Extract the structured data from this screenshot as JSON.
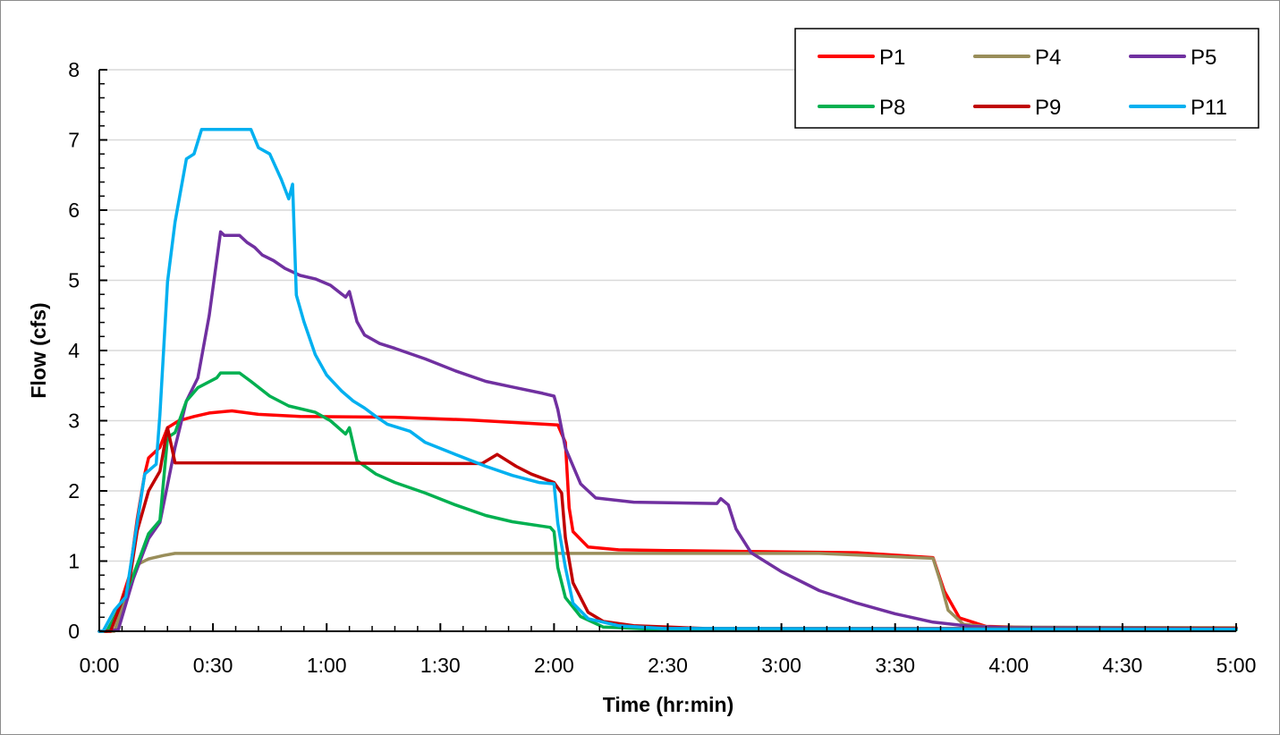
{
  "chart_data": {
    "type": "line",
    "xlabel": "Time (hr:min)",
    "ylabel": "Flow (cfs)",
    "xlim": [
      "0:00",
      "5:00"
    ],
    "ylim": [
      0,
      8
    ],
    "x_ticks": [
      "0:00",
      "0:30",
      "1:00",
      "1:30",
      "2:00",
      "2:30",
      "3:00",
      "3:30",
      "4:00",
      "4:30",
      "5:00"
    ],
    "y_ticks": [
      "0",
      "1",
      "2",
      "3",
      "4",
      "5",
      "6",
      "7",
      "8"
    ],
    "grid": "horizontal",
    "legend_position": "top-right",
    "series": [
      {
        "name": "P1",
        "color": "#FF0000",
        "points": [
          [
            "0:00",
            0
          ],
          [
            "0:02",
            0
          ],
          [
            "0:05",
            0.3
          ],
          [
            "0:08",
            0.8
          ],
          [
            "0:10",
            1.6
          ],
          [
            "0:12",
            2.24
          ],
          [
            "0:13",
            2.47
          ],
          [
            "0:16",
            2.62
          ],
          [
            "0:18",
            2.9
          ],
          [
            "0:21",
            3.0
          ],
          [
            "0:25",
            3.06
          ],
          [
            "0:29",
            3.11
          ],
          [
            "0:35",
            3.14
          ],
          [
            "0:42",
            3.09
          ],
          [
            "0:53",
            3.06
          ],
          [
            "1:18",
            3.05
          ],
          [
            "1:38",
            3.01
          ],
          [
            "2:01",
            2.94
          ],
          [
            "2:03",
            2.69
          ],
          [
            "2:04",
            1.76
          ],
          [
            "2:05",
            1.42
          ],
          [
            "2:09",
            1.2
          ],
          [
            "2:17",
            1.16
          ],
          [
            "2:30",
            1.15
          ],
          [
            "3:20",
            1.12
          ],
          [
            "3:40",
            1.05
          ],
          [
            "3:43",
            0.57
          ],
          [
            "3:47",
            0.19
          ],
          [
            "3:54",
            0.07
          ],
          [
            "4:10",
            0.05
          ],
          [
            "5:00",
            0.05
          ]
        ]
      },
      {
        "name": "P4",
        "color": "#998E5A",
        "points": [
          [
            "0:00",
            0
          ],
          [
            "0:04",
            0
          ],
          [
            "0:07",
            0.49
          ],
          [
            "0:10",
            0.95
          ],
          [
            "0:13",
            1.03
          ],
          [
            "0:17",
            1.08
          ],
          [
            "0:20",
            1.11
          ],
          [
            "3:10",
            1.11
          ],
          [
            "3:40",
            1.04
          ],
          [
            "3:42",
            0.7
          ],
          [
            "3:44",
            0.3
          ],
          [
            "3:48",
            0.1
          ],
          [
            "3:55",
            0.06
          ],
          [
            "5:00",
            0.05
          ]
        ]
      },
      {
        "name": "P5",
        "color": "#7030A0",
        "points": [
          [
            "0:00",
            0
          ],
          [
            "0:05",
            0.02
          ],
          [
            "0:09",
            0.75
          ],
          [
            "0:13",
            1.32
          ],
          [
            "0:16",
            1.55
          ],
          [
            "0:20",
            2.62
          ],
          [
            "0:23",
            3.28
          ],
          [
            "0:26",
            3.61
          ],
          [
            "0:29",
            4.5
          ],
          [
            "0:32",
            5.69
          ],
          [
            "0:33",
            5.64
          ],
          [
            "0:37",
            5.64
          ],
          [
            "0:39",
            5.54
          ],
          [
            "0:41",
            5.47
          ],
          [
            "0:43",
            5.36
          ],
          [
            "0:46",
            5.28
          ],
          [
            "0:49",
            5.17
          ],
          [
            "0:53",
            5.07
          ],
          [
            "0:57",
            5.02
          ],
          [
            "1:01",
            4.93
          ],
          [
            "1:05",
            4.76
          ],
          [
            "1:06",
            4.84
          ],
          [
            "1:08",
            4.41
          ],
          [
            "1:10",
            4.22
          ],
          [
            "1:14",
            4.1
          ],
          [
            "1:18",
            4.03
          ],
          [
            "1:26",
            3.88
          ],
          [
            "1:34",
            3.71
          ],
          [
            "1:42",
            3.56
          ],
          [
            "1:49",
            3.48
          ],
          [
            "1:57",
            3.39
          ],
          [
            "2:00",
            3.35
          ],
          [
            "2:01",
            3.16
          ],
          [
            "2:03",
            2.61
          ],
          [
            "2:07",
            2.1
          ],
          [
            "2:11",
            1.9
          ],
          [
            "2:21",
            1.84
          ],
          [
            "2:43",
            1.82
          ],
          [
            "2:44",
            1.89
          ],
          [
            "2:46",
            1.8
          ],
          [
            "2:48",
            1.46
          ],
          [
            "2:52",
            1.12
          ],
          [
            "3:00",
            0.85
          ],
          [
            "3:10",
            0.58
          ],
          [
            "3:20",
            0.4
          ],
          [
            "3:30",
            0.25
          ],
          [
            "3:40",
            0.13
          ],
          [
            "3:50",
            0.07
          ],
          [
            "4:00",
            0.05
          ],
          [
            "5:00",
            0.04
          ]
        ]
      },
      {
        "name": "P8",
        "color": "#00B050",
        "points": [
          [
            "0:00",
            0
          ],
          [
            "0:02",
            0
          ],
          [
            "0:05",
            0.3
          ],
          [
            "0:09",
            0.8
          ],
          [
            "0:13",
            1.39
          ],
          [
            "0:16",
            1.58
          ],
          [
            "0:18",
            2.76
          ],
          [
            "0:20",
            2.83
          ],
          [
            "0:23",
            3.28
          ],
          [
            "0:26",
            3.47
          ],
          [
            "0:31",
            3.61
          ],
          [
            "0:32",
            3.68
          ],
          [
            "0:37",
            3.68
          ],
          [
            "0:40",
            3.56
          ],
          [
            "0:45",
            3.35
          ],
          [
            "0:50",
            3.21
          ],
          [
            "0:57",
            3.12
          ],
          [
            "1:01",
            3.0
          ],
          [
            "1:05",
            2.81
          ],
          [
            "1:06",
            2.9
          ],
          [
            "1:08",
            2.43
          ],
          [
            "1:13",
            2.24
          ],
          [
            "1:18",
            2.12
          ],
          [
            "1:26",
            1.97
          ],
          [
            "1:34",
            1.8
          ],
          [
            "1:42",
            1.65
          ],
          [
            "1:49",
            1.56
          ],
          [
            "1:59",
            1.48
          ],
          [
            "2:00",
            1.42
          ],
          [
            "2:01",
            0.91
          ],
          [
            "2:03",
            0.48
          ],
          [
            "2:07",
            0.21
          ],
          [
            "2:13",
            0.06
          ],
          [
            "2:30",
            0.02
          ],
          [
            "5:00",
            0.02
          ]
        ]
      },
      {
        "name": "P9",
        "color": "#C00000",
        "points": [
          [
            "0:00",
            0
          ],
          [
            "0:03",
            0
          ],
          [
            "0:08",
            0.73
          ],
          [
            "0:10",
            1.43
          ],
          [
            "0:13",
            2.0
          ],
          [
            "0:16",
            2.28
          ],
          [
            "0:18",
            2.9
          ],
          [
            "0:20",
            2.4
          ],
          [
            "1:41",
            2.39
          ],
          [
            "1:45",
            2.52
          ],
          [
            "1:50",
            2.35
          ],
          [
            "1:54",
            2.24
          ],
          [
            "2:00",
            2.12
          ],
          [
            "2:02",
            1.97
          ],
          [
            "2:03",
            1.33
          ],
          [
            "2:05",
            0.69
          ],
          [
            "2:09",
            0.27
          ],
          [
            "2:13",
            0.14
          ],
          [
            "2:21",
            0.08
          ],
          [
            "2:40",
            0.04
          ],
          [
            "5:00",
            0.04
          ]
        ]
      },
      {
        "name": "P11",
        "color": "#00B0F0",
        "points": [
          [
            "0:00",
            0
          ],
          [
            "0:01",
            0
          ],
          [
            "0:04",
            0.3
          ],
          [
            "0:07",
            0.49
          ],
          [
            "0:12",
            2.24
          ],
          [
            "0:15",
            2.38
          ],
          [
            "0:16",
            3.09
          ],
          [
            "0:18",
            4.98
          ],
          [
            "0:20",
            5.83
          ],
          [
            "0:23",
            6.73
          ],
          [
            "0:25",
            6.8
          ],
          [
            "0:27",
            7.15
          ],
          [
            "0:40",
            7.15
          ],
          [
            "0:42",
            6.89
          ],
          [
            "0:45",
            6.8
          ],
          [
            "0:48",
            6.44
          ],
          [
            "0:50",
            6.16
          ],
          [
            "0:51",
            6.37
          ],
          [
            "0:52",
            4.79
          ],
          [
            "0:54",
            4.41
          ],
          [
            "0:57",
            3.94
          ],
          [
            "1:00",
            3.65
          ],
          [
            "1:04",
            3.42
          ],
          [
            "1:07",
            3.28
          ],
          [
            "1:10",
            3.18
          ],
          [
            "1:13",
            3.06
          ],
          [
            "1:16",
            2.95
          ],
          [
            "1:22",
            2.85
          ],
          [
            "1:26",
            2.69
          ],
          [
            "1:34",
            2.52
          ],
          [
            "1:42",
            2.35
          ],
          [
            "1:49",
            2.22
          ],
          [
            "1:56",
            2.12
          ],
          [
            "2:00",
            2.1
          ],
          [
            "2:01",
            1.54
          ],
          [
            "2:03",
            0.91
          ],
          [
            "2:05",
            0.4
          ],
          [
            "2:09",
            0.18
          ],
          [
            "2:17",
            0.08
          ],
          [
            "2:29",
            0.04
          ],
          [
            "5:00",
            0.03
          ]
        ]
      }
    ]
  }
}
